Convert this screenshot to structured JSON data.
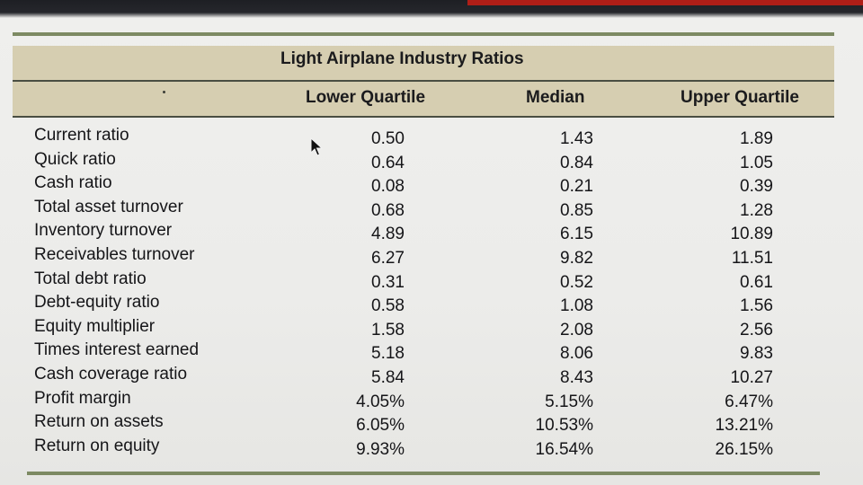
{
  "table": {
    "title": "Light Airplane Industry Ratios",
    "columns": [
      "Lower Quartile",
      "Median",
      "Upper Quartile"
    ],
    "rows": [
      {
        "label": "Current ratio",
        "values": [
          "0.50",
          "1.43",
          "1.89"
        ]
      },
      {
        "label": "Quick ratio",
        "values": [
          "0.64",
          "0.84",
          "1.05"
        ]
      },
      {
        "label": "Cash ratio",
        "values": [
          "0.08",
          "0.21",
          "0.39"
        ]
      },
      {
        "label": "Total asset turnover",
        "values": [
          "0.68",
          "0.85",
          "1.28"
        ]
      },
      {
        "label": "Inventory turnover",
        "values": [
          "4.89",
          "6.15",
          "10.89"
        ]
      },
      {
        "label": "Receivables turnover",
        "values": [
          "6.27",
          "9.82",
          "11.51"
        ]
      },
      {
        "label": "Total debt ratio",
        "values": [
          "0.31",
          "0.52",
          "0.61"
        ]
      },
      {
        "label": "Debt-equity ratio",
        "values": [
          "0.58",
          "1.08",
          "1.56"
        ]
      },
      {
        "label": "Equity multiplier",
        "values": [
          "1.58",
          "2.08",
          "2.56"
        ]
      },
      {
        "label": "Times interest earned",
        "values": [
          "5.18",
          "8.06",
          "9.83"
        ]
      },
      {
        "label": "Cash coverage ratio",
        "values": [
          "5.84",
          "8.43",
          "10.27"
        ]
      },
      {
        "label": "Profit margin",
        "values": [
          "4.05%",
          "5.15%",
          "6.47%"
        ]
      },
      {
        "label": "Return on assets",
        "values": [
          "6.05%",
          "10.53%",
          "13.21%"
        ]
      },
      {
        "label": "Return on equity",
        "values": [
          "9.93%",
          "16.54%",
          "26.15%"
        ]
      }
    ]
  },
  "colors": {
    "header_band": "#d6ceb1",
    "rule": "#7d8a63",
    "text": "#151518"
  }
}
